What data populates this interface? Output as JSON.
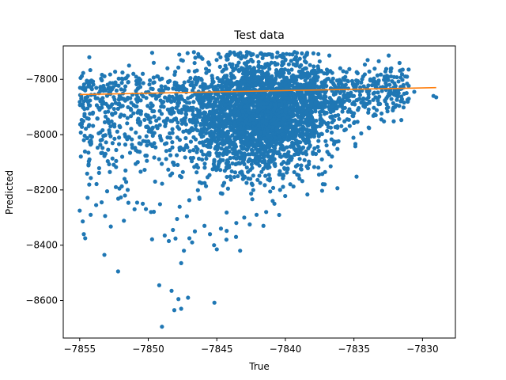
{
  "chart_data": {
    "type": "scatter",
    "title": "Test data",
    "xlabel": "True",
    "ylabel": "Predicted",
    "xlim": [
      -7856.2,
      -7827.6
    ],
    "ylim": [
      -8736,
      -7679
    ],
    "xticks": [
      -7855,
      -7850,
      -7845,
      -7840,
      -7835,
      -7830
    ],
    "yticks": [
      -8600,
      -8400,
      -8200,
      -8000,
      -7800
    ],
    "tick_labels_x": [
      "−7855",
      "−7850",
      "−7845",
      "−7840",
      "−7835",
      "−7830"
    ],
    "tick_labels_y": [
      "−8600",
      "−8400",
      "−8200",
      "−8000",
      "−7800"
    ],
    "grid": false,
    "colors": {
      "scatter": "#1f77b4",
      "line": "#ff7f0e"
    },
    "series": [
      {
        "kind": "scatter",
        "points": [
          [
            -7854.6,
            -8375
          ],
          [
            -7854.7,
            -8360
          ],
          [
            -7855.0,
            -8275
          ],
          [
            -7854.2,
            -8290
          ],
          [
            -7853.8,
            -8255
          ],
          [
            -7853.4,
            -8245
          ],
          [
            -7853.0,
            -8205
          ],
          [
            -7853.2,
            -8435
          ],
          [
            -7852.2,
            -8495
          ],
          [
            -7851.9,
            -8080
          ],
          [
            -7851.5,
            -8200
          ],
          [
            -7851.0,
            -8270
          ],
          [
            -7850.4,
            -8250
          ],
          [
            -7849.8,
            -8280
          ],
          [
            -7849.5,
            -8170
          ],
          [
            -7849.2,
            -8545
          ],
          [
            -7849.0,
            -8695
          ],
          [
            -7848.8,
            -8365
          ],
          [
            -7848.5,
            -8385
          ],
          [
            -7848.2,
            -8345
          ],
          [
            -7847.9,
            -8305
          ],
          [
            -7847.6,
            -8465
          ],
          [
            -7847.4,
            -8420
          ],
          [
            -7847.0,
            -8375
          ],
          [
            -7846.8,
            -8390
          ],
          [
            -7848.3,
            -8565
          ],
          [
            -7848.1,
            -8635
          ],
          [
            -7847.8,
            -8595
          ],
          [
            -7847.6,
            -8630
          ],
          [
            -7847.1,
            -8590
          ],
          [
            -7846.6,
            -8350
          ],
          [
            -7845.9,
            -8330
          ],
          [
            -7845.5,
            -8360
          ],
          [
            -7845.2,
            -8400
          ],
          [
            -7845.0,
            -8415
          ],
          [
            -7844.7,
            -8340
          ],
          [
            -7844.3,
            -8380
          ],
          [
            -7843.6,
            -8370
          ],
          [
            -7843.3,
            -8420
          ],
          [
            -7843.0,
            -8300
          ],
          [
            -7842.6,
            -8325
          ],
          [
            -7842.1,
            -8290
          ],
          [
            -7841.6,
            -8330
          ],
          [
            -7841.4,
            -8280
          ],
          [
            -7840.8,
            -8250
          ],
          [
            -7854.6,
            -7840
          ],
          [
            -7854.3,
            -7720
          ],
          [
            -7853.6,
            -7850
          ],
          [
            -7852.8,
            -7830
          ],
          [
            -7851.4,
            -7750
          ],
          [
            -7850.4,
            -7780
          ],
          [
            -7849.6,
            -7740
          ],
          [
            -7849.3,
            -7790
          ],
          [
            -7848.6,
            -7760
          ],
          [
            -7847.6,
            -7730
          ],
          [
            -7838.6,
            -7720
          ],
          [
            -7837.5,
            -7735
          ],
          [
            -7836.0,
            -7760
          ],
          [
            -7834.0,
            -7730
          ],
          [
            -7833.8,
            -7800
          ],
          [
            -7832.4,
            -7820
          ],
          [
            -7831.8,
            -7840
          ],
          [
            -7831.6,
            -7835
          ],
          [
            -7829.2,
            -7860
          ],
          [
            -7829.0,
            -7865
          ],
          [
            -7830.6,
            -7845
          ],
          [
            -7831.0,
            -7870
          ],
          [
            -7833.2,
            -7890
          ],
          [
            -7834.6,
            -7870
          ],
          [
            -7835.8,
            -7905
          ],
          [
            -7836.6,
            -7900
          ],
          [
            -7835.5,
            -7860
          ],
          [
            -7834.2,
            -7900
          ],
          [
            -7833.0,
            -7945
          ],
          [
            -7832.0,
            -7900
          ]
        ],
        "cloud": {
          "x": -7841.6,
          "y": -7925,
          "x_spread": 2.4,
          "y_spread": 105
        }
      },
      {
        "kind": "line",
        "x": [
          -7855.0,
          -7829.0
        ],
        "y": [
          -7855,
          -7830
        ]
      }
    ]
  }
}
